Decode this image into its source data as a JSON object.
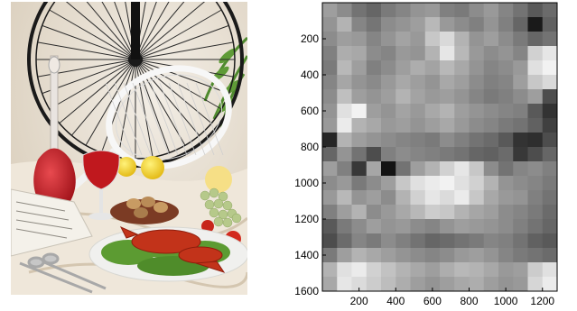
{
  "photo": {
    "description_icon": "still-life-photo",
    "colors": {
      "background": "#e9e2d6",
      "tablecloth": "#efe8dc",
      "wine": "#c0181e",
      "lemon": "#f2d21e",
      "grape": "#b6c98a",
      "lettuce": "#5c9b32",
      "lobster": "#c2331a",
      "fern": "#4f8a2e",
      "wheel": "#1a1a1a"
    }
  },
  "chart_data": {
    "type": "heatmap",
    "colormap": "gray",
    "rows": 20,
    "cols": 16,
    "xlim": [
      0,
      1280
    ],
    "ylim": [
      0,
      1600
    ],
    "y_reversed": true,
    "xticks": [
      200,
      400,
      600,
      800,
      1000,
      1200
    ],
    "yticks": [
      200,
      400,
      600,
      800,
      1000,
      1200,
      1400,
      1600
    ],
    "xticklabels": [
      "200",
      "400",
      "600",
      "800",
      "1000",
      "1200"
    ],
    "yticklabels": [
      "200",
      "400",
      "600",
      "800",
      "1000",
      "1200",
      "1400",
      "1600"
    ],
    "grid": false,
    "values": [
      [
        0.62,
        0.55,
        0.45,
        0.4,
        0.48,
        0.52,
        0.58,
        0.6,
        0.5,
        0.48,
        0.55,
        0.6,
        0.52,
        0.45,
        0.35,
        0.42
      ],
      [
        0.58,
        0.7,
        0.52,
        0.46,
        0.55,
        0.58,
        0.62,
        0.72,
        0.6,
        0.55,
        0.5,
        0.58,
        0.5,
        0.4,
        0.1,
        0.38
      ],
      [
        0.55,
        0.62,
        0.6,
        0.52,
        0.58,
        0.64,
        0.6,
        0.78,
        0.85,
        0.7,
        0.58,
        0.62,
        0.55,
        0.48,
        0.4,
        0.45
      ],
      [
        0.5,
        0.68,
        0.66,
        0.55,
        0.52,
        0.6,
        0.58,
        0.7,
        0.9,
        0.72,
        0.6,
        0.55,
        0.58,
        0.52,
        0.82,
        0.9
      ],
      [
        0.48,
        0.72,
        0.62,
        0.5,
        0.55,
        0.62,
        0.68,
        0.64,
        0.72,
        0.66,
        0.58,
        0.52,
        0.55,
        0.6,
        0.88,
        0.95
      ],
      [
        0.52,
        0.65,
        0.58,
        0.54,
        0.6,
        0.66,
        0.62,
        0.58,
        0.66,
        0.62,
        0.55,
        0.5,
        0.52,
        0.62,
        0.78,
        0.85
      ],
      [
        0.55,
        0.75,
        0.62,
        0.58,
        0.62,
        0.7,
        0.64,
        0.6,
        0.62,
        0.58,
        0.52,
        0.48,
        0.5,
        0.55,
        0.62,
        0.3
      ],
      [
        0.58,
        0.88,
        0.95,
        0.62,
        0.58,
        0.64,
        0.6,
        0.66,
        0.7,
        0.62,
        0.58,
        0.55,
        0.52,
        0.5,
        0.35,
        0.2
      ],
      [
        0.6,
        0.92,
        0.7,
        0.66,
        0.6,
        0.62,
        0.58,
        0.62,
        0.66,
        0.6,
        0.55,
        0.52,
        0.48,
        0.45,
        0.38,
        0.25
      ],
      [
        0.15,
        0.7,
        0.62,
        0.58,
        0.55,
        0.52,
        0.5,
        0.48,
        0.55,
        0.5,
        0.45,
        0.42,
        0.35,
        0.2,
        0.18,
        0.3
      ],
      [
        0.4,
        0.58,
        0.45,
        0.3,
        0.5,
        0.55,
        0.52,
        0.5,
        0.48,
        0.45,
        0.4,
        0.38,
        0.42,
        0.22,
        0.3,
        0.4
      ],
      [
        0.62,
        0.5,
        0.22,
        0.65,
        0.08,
        0.45,
        0.62,
        0.7,
        0.82,
        0.9,
        0.78,
        0.55,
        0.45,
        0.52,
        0.55,
        0.5
      ],
      [
        0.55,
        0.6,
        0.48,
        0.55,
        0.62,
        0.78,
        0.88,
        0.92,
        0.95,
        0.88,
        0.82,
        0.7,
        0.58,
        0.55,
        0.52,
        0.48
      ],
      [
        0.6,
        0.72,
        0.58,
        0.62,
        0.55,
        0.7,
        0.82,
        0.9,
        0.86,
        0.92,
        0.78,
        0.66,
        0.6,
        0.58,
        0.5,
        0.45
      ],
      [
        0.5,
        0.62,
        0.7,
        0.55,
        0.6,
        0.66,
        0.72,
        0.8,
        0.78,
        0.7,
        0.65,
        0.62,
        0.55,
        0.52,
        0.48,
        0.42
      ],
      [
        0.35,
        0.48,
        0.55,
        0.62,
        0.58,
        0.6,
        0.55,
        0.52,
        0.58,
        0.62,
        0.6,
        0.58,
        0.55,
        0.5,
        0.45,
        0.4
      ],
      [
        0.3,
        0.42,
        0.52,
        0.48,
        0.55,
        0.5,
        0.45,
        0.4,
        0.42,
        0.45,
        0.48,
        0.52,
        0.5,
        0.45,
        0.38,
        0.35
      ],
      [
        0.48,
        0.62,
        0.7,
        0.66,
        0.62,
        0.58,
        0.55,
        0.52,
        0.55,
        0.6,
        0.62,
        0.58,
        0.52,
        0.48,
        0.45,
        0.42
      ],
      [
        0.7,
        0.88,
        0.92,
        0.82,
        0.76,
        0.7,
        0.66,
        0.62,
        0.68,
        0.72,
        0.7,
        0.66,
        0.6,
        0.62,
        0.8,
        0.88
      ],
      [
        0.66,
        0.9,
        0.86,
        0.8,
        0.74,
        0.68,
        0.62,
        0.58,
        0.62,
        0.66,
        0.68,
        0.62,
        0.58,
        0.6,
        0.84,
        0.92
      ]
    ]
  }
}
